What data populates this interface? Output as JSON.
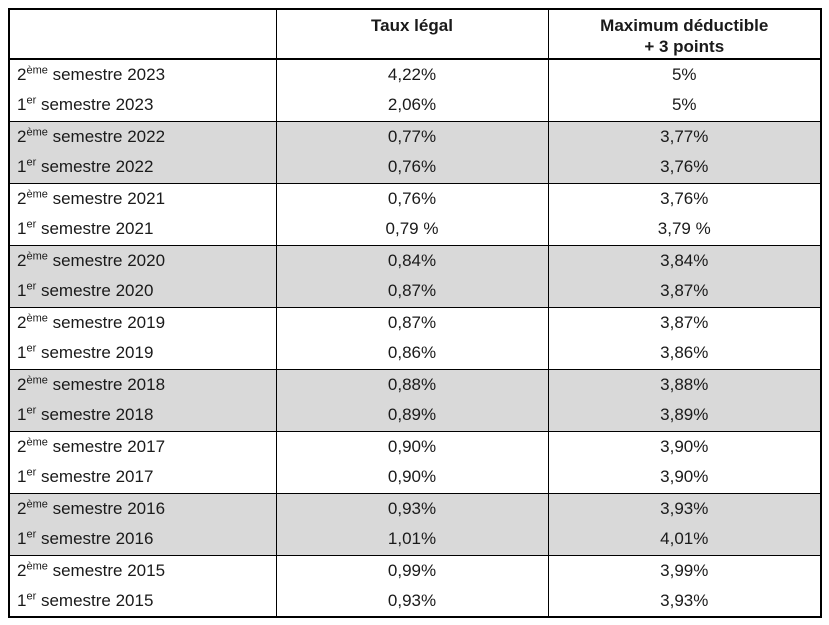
{
  "table": {
    "headers": {
      "corner": "",
      "taux_legal": "Taux légal",
      "max_deductible": "Maximum déductible\n+ 3 points"
    },
    "shading_color": "#d9d9d9",
    "border_color": "#000000",
    "rows": [
      {
        "num": "2",
        "sup": "ème",
        "rest": "semestre 2023",
        "taux": "4,22%",
        "max": "5%",
        "shaded": false
      },
      {
        "num": "1",
        "sup": "er",
        "rest": "semestre 2023",
        "taux": "2,06%",
        "max": "5%",
        "shaded": false
      },
      {
        "num": "2",
        "sup": "ème",
        "rest": "semestre 2022",
        "taux": "0,77%",
        "max": "3,77%",
        "shaded": true
      },
      {
        "num": "1",
        "sup": "er",
        "rest": "semestre 2022",
        "taux": "0,76%",
        "max": "3,76%",
        "shaded": true
      },
      {
        "num": "2",
        "sup": "ème",
        "rest": "semestre 2021",
        "taux": "0,76%",
        "max": "3,76%",
        "shaded": false
      },
      {
        "num": "1",
        "sup": "er",
        "rest": "semestre 2021",
        "taux": "0,79 %",
        "max": "3,79 %",
        "shaded": false
      },
      {
        "num": "2",
        "sup": "ème",
        "rest": "semestre 2020",
        "taux": "0,84%",
        "max": "3,84%",
        "shaded": true
      },
      {
        "num": "1",
        "sup": "er",
        "rest": "semestre 2020",
        "taux": "0,87%",
        "max": "3,87%",
        "shaded": true
      },
      {
        "num": "2",
        "sup": "ème",
        "rest": "semestre 2019",
        "taux": "0,87%",
        "max": "3,87%",
        "shaded": false
      },
      {
        "num": "1",
        "sup": "er",
        "rest": "semestre 2019",
        "taux": "0,86%",
        "max": "3,86%",
        "shaded": false
      },
      {
        "num": "2",
        "sup": "ème",
        "rest": "semestre 2018",
        "taux": "0,88%",
        "max": "3,88%",
        "shaded": true
      },
      {
        "num": "1",
        "sup": "er",
        "rest": "semestre 2018",
        "taux": "0,89%",
        "max": "3,89%",
        "shaded": true
      },
      {
        "num": "2",
        "sup": "ème",
        "rest": "semestre 2017",
        "taux": "0,90%",
        "max": "3,90%",
        "shaded": false
      },
      {
        "num": "1",
        "sup": "er",
        "rest": "semestre 2017",
        "taux": "0,90%",
        "max": "3,90%",
        "shaded": false
      },
      {
        "num": "2",
        "sup": "ème",
        "rest": "semestre 2016",
        "taux": "0,93%",
        "max": "3,93%",
        "shaded": true
      },
      {
        "num": "1",
        "sup": "er",
        "rest": "semestre 2016",
        "taux": "1,01%",
        "max": "4,01%",
        "shaded": true
      },
      {
        "num": "2",
        "sup": "ème",
        "rest": "semestre 2015",
        "taux": "0,99%",
        "max": "3,99%",
        "shaded": false
      },
      {
        "num": "1",
        "sup": "er",
        "rest": "semestre 2015",
        "taux": "0,93%",
        "max": "3,93%",
        "shaded": false
      }
    ]
  }
}
